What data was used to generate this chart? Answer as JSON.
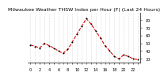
{
  "title": "Milwaukee Weather THSW Index per Hour (F) (Last 24 Hours)",
  "hours": [
    0,
    1,
    2,
    3,
    4,
    5,
    6,
    7,
    8,
    9,
    10,
    11,
    12,
    13,
    14,
    15,
    16,
    17,
    18,
    19,
    20,
    21,
    22,
    23
  ],
  "values": [
    48,
    46,
    44,
    50,
    47,
    44,
    40,
    37,
    42,
    52,
    62,
    72,
    82,
    75,
    66,
    57,
    47,
    40,
    33,
    30,
    35,
    33,
    30,
    29
  ],
  "line_color": "#dd0000",
  "marker_color": "#000000",
  "bg_color": "#ffffff",
  "plot_bg_color": "#ffffff",
  "grid_color": "#bbbbbb",
  "ylim": [
    25,
    90
  ],
  "ytick_values": [
    30,
    40,
    50,
    60,
    70,
    80
  ],
  "ytick_labels": [
    "30",
    "40",
    "50",
    "60",
    "70",
    "80"
  ],
  "xticks": [
    0,
    1,
    2,
    3,
    4,
    5,
    6,
    7,
    8,
    9,
    10,
    11,
    12,
    13,
    14,
    15,
    16,
    17,
    18,
    19,
    20,
    21,
    22,
    23
  ],
  "title_fontsize": 4.5,
  "tick_fontsize": 3.5,
  "axis_label_color": "#000000",
  "linewidth": 0.8,
  "markersize": 2.0
}
